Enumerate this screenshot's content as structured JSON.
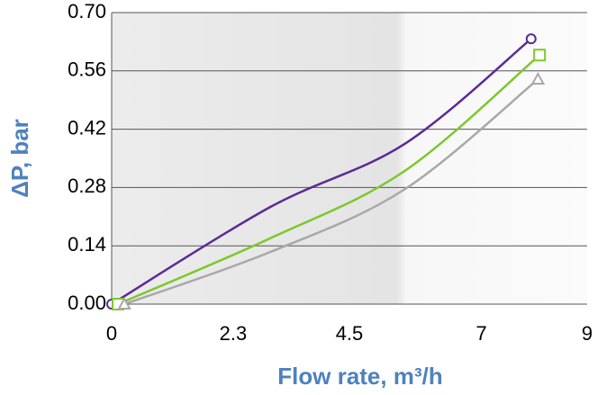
{
  "chart_data": {
    "type": "line",
    "xlabel": "Flow rate, m³/h",
    "ylabel": "ΔP, bar",
    "xlim": [
      0,
      9
    ],
    "xticks": [
      0,
      2.3,
      4.5,
      7,
      9
    ],
    "ylim": [
      0,
      0.7
    ],
    "yticks": [
      {
        "value": 0,
        "label": "0.00"
      },
      0.14,
      0.28,
      0.42,
      0.56,
      {
        "value": 0.7,
        "label": "0.70"
      }
    ],
    "grid": true,
    "series": [
      {
        "color": "#5b2a96",
        "marker": "circle",
        "x": [
          0,
          3.0,
          5.55,
          7.94
        ],
        "values": [
          0,
          0.233,
          0.385,
          0.637
        ]
      },
      {
        "color": "#7cc82a",
        "marker": "square",
        "x": [
          0.12,
          3.0,
          5.55,
          8.1
        ],
        "values": [
          0,
          0.158,
          0.32,
          0.598
        ]
      },
      {
        "color": "#a8a8a8",
        "marker": "triangle",
        "x": [
          0.24,
          3.0,
          5.55,
          8.07
        ],
        "values": [
          0,
          0.125,
          0.276,
          0.54
        ]
      }
    ]
  }
}
